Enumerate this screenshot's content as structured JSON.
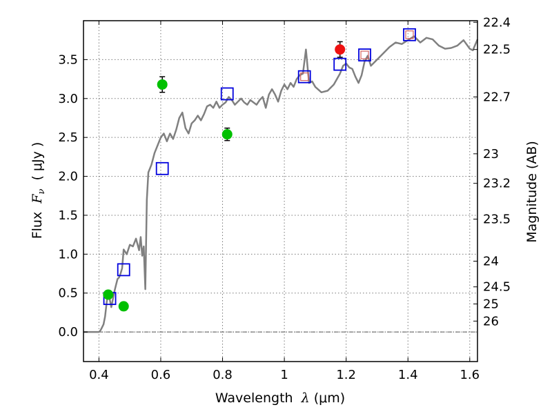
{
  "chart_data": {
    "type": "scatter",
    "xlabel": {
      "prefix": "Wavelength  ",
      "symbol": "λ",
      "suffix": " (μm)"
    },
    "ylabel": {
      "prefix": "Flux  ",
      "symbol": "F",
      "subscript": "ν",
      "suffix": "  ( μJy )"
    },
    "y2label": "Magnitude (AB)",
    "xlim": [
      0.35,
      1.625
    ],
    "ylim": [
      -0.38,
      4.0
    ],
    "grid": true,
    "x_ticks": [
      {
        "value": 0.4,
        "label": "0.4"
      },
      {
        "value": 0.6,
        "label": "0.6"
      },
      {
        "value": 0.8,
        "label": "0.8"
      },
      {
        "value": 1.0,
        "label": "1"
      },
      {
        "value": 1.2,
        "label": "1.2"
      },
      {
        "value": 1.4,
        "label": "1.4"
      },
      {
        "value": 1.6,
        "label": "1.6"
      }
    ],
    "y_ticks": [
      {
        "value": 0.0,
        "label": "0.0"
      },
      {
        "value": 0.5,
        "label": "0.5"
      },
      {
        "value": 1.0,
        "label": "1.0"
      },
      {
        "value": 1.5,
        "label": "1.5"
      },
      {
        "value": 2.0,
        "label": "2.0"
      },
      {
        "value": 2.5,
        "label": "2.5"
      },
      {
        "value": 3.0,
        "label": "3.0"
      },
      {
        "value": 3.5,
        "label": "3.5"
      }
    ],
    "y2_ticks": [
      {
        "flux": 3.98,
        "label": "22.4"
      },
      {
        "flux": 3.63,
        "label": "22.5"
      },
      {
        "flux": 3.02,
        "label": "22.7"
      },
      {
        "flux": 2.29,
        "label": "23"
      },
      {
        "flux": 1.91,
        "label": "23.2"
      },
      {
        "flux": 1.45,
        "label": "23.5"
      },
      {
        "flux": 0.91,
        "label": "24"
      },
      {
        "flux": 0.58,
        "label": "24.5"
      },
      {
        "flux": 0.36,
        "label": "25"
      },
      {
        "flux": 0.14,
        "label": "26"
      }
    ],
    "colors": {
      "model": "#808080",
      "photometry_green": "#00c000",
      "photometry_red": "#ee1111",
      "synthetic_square": "#0000dd",
      "inner_square": "#d06060",
      "grid": "#777777",
      "zero_line": "#555555"
    },
    "series": [
      {
        "name": "model spectrum",
        "type": "line",
        "x": [
          0.35,
          0.4,
          0.405,
          0.41,
          0.415,
          0.42,
          0.425,
          0.43,
          0.44,
          0.45,
          0.455,
          0.46,
          0.465,
          0.47,
          0.475,
          0.48,
          0.49,
          0.5,
          0.51,
          0.52,
          0.53,
          0.535,
          0.54,
          0.545,
          0.55,
          0.555,
          0.56,
          0.57,
          0.58,
          0.59,
          0.6,
          0.61,
          0.62,
          0.63,
          0.64,
          0.65,
          0.66,
          0.67,
          0.68,
          0.69,
          0.7,
          0.71,
          0.72,
          0.73,
          0.74,
          0.75,
          0.76,
          0.77,
          0.78,
          0.79,
          0.8,
          0.81,
          0.82,
          0.83,
          0.84,
          0.85,
          0.86,
          0.87,
          0.88,
          0.89,
          0.9,
          0.91,
          0.92,
          0.93,
          0.94,
          0.95,
          0.96,
          0.97,
          0.98,
          0.99,
          1.0,
          1.01,
          1.02,
          1.03,
          1.04,
          1.05,
          1.06,
          1.07,
          1.08,
          1.09,
          1.1,
          1.12,
          1.14,
          1.16,
          1.18,
          1.19,
          1.2,
          1.21,
          1.22,
          1.23,
          1.24,
          1.25,
          1.26,
          1.27,
          1.28,
          1.3,
          1.32,
          1.34,
          1.36,
          1.38,
          1.4,
          1.42,
          1.44,
          1.46,
          1.48,
          1.5,
          1.52,
          1.54,
          1.56,
          1.58,
          1.6,
          1.61,
          1.625
        ],
        "y": [
          0.0,
          0.0,
          0.02,
          0.06,
          0.1,
          0.2,
          0.38,
          0.52,
          0.32,
          0.52,
          0.6,
          0.68,
          0.7,
          0.75,
          0.82,
          1.06,
          1.0,
          1.12,
          1.1,
          1.2,
          1.05,
          1.22,
          0.98,
          1.1,
          0.55,
          1.7,
          2.05,
          2.15,
          2.3,
          2.4,
          2.5,
          2.55,
          2.45,
          2.55,
          2.48,
          2.6,
          2.75,
          2.82,
          2.62,
          2.55,
          2.68,
          2.72,
          2.78,
          2.72,
          2.8,
          2.9,
          2.92,
          2.88,
          2.96,
          2.88,
          2.92,
          2.95,
          3.02,
          2.98,
          2.92,
          2.96,
          3.0,
          2.95,
          2.92,
          2.98,
          2.95,
          2.92,
          2.98,
          3.02,
          2.88,
          3.05,
          3.12,
          3.05,
          2.96,
          3.1,
          3.18,
          3.12,
          3.2,
          3.15,
          3.25,
          3.3,
          3.32,
          3.63,
          3.2,
          3.22,
          3.15,
          3.08,
          3.1,
          3.18,
          3.32,
          3.42,
          3.45,
          3.4,
          3.38,
          3.28,
          3.2,
          3.3,
          3.48,
          3.55,
          3.42,
          3.5,
          3.58,
          3.66,
          3.72,
          3.7,
          3.75,
          3.8,
          3.72,
          3.78,
          3.76,
          3.68,
          3.64,
          3.65,
          3.68,
          3.75,
          3.64,
          3.62,
          3.76
        ]
      },
      {
        "name": "green photometry",
        "type": "scatter",
        "points": [
          {
            "x": 0.43,
            "y": 0.48,
            "err": 0.05
          },
          {
            "x": 0.48,
            "y": 0.33,
            "err": 0.05
          },
          {
            "x": 0.605,
            "y": 3.18,
            "err": 0.1
          },
          {
            "x": 0.815,
            "y": 2.54,
            "err": 0.08
          }
        ]
      },
      {
        "name": "red photometry",
        "type": "scatter",
        "points": [
          {
            "x": 1.18,
            "y": 3.63,
            "err": 0.1
          }
        ]
      },
      {
        "name": "synthetic photometry",
        "type": "scatter",
        "points": [
          {
            "x": 0.435,
            "y": 0.43
          },
          {
            "x": 0.48,
            "y": 0.8
          },
          {
            "x": 0.605,
            "y": 2.1
          },
          {
            "x": 0.815,
            "y": 3.06
          },
          {
            "x": 1.065,
            "y": 3.28
          },
          {
            "x": 1.18,
            "y": 3.44
          },
          {
            "x": 1.26,
            "y": 3.56
          },
          {
            "x": 1.405,
            "y": 3.82
          }
        ]
      },
      {
        "name": "inner squares",
        "type": "scatter",
        "points": [
          {
            "x": 1.065,
            "y": 3.28
          },
          {
            "x": 1.26,
            "y": 3.56
          },
          {
            "x": 1.405,
            "y": 3.82
          }
        ]
      }
    ]
  }
}
